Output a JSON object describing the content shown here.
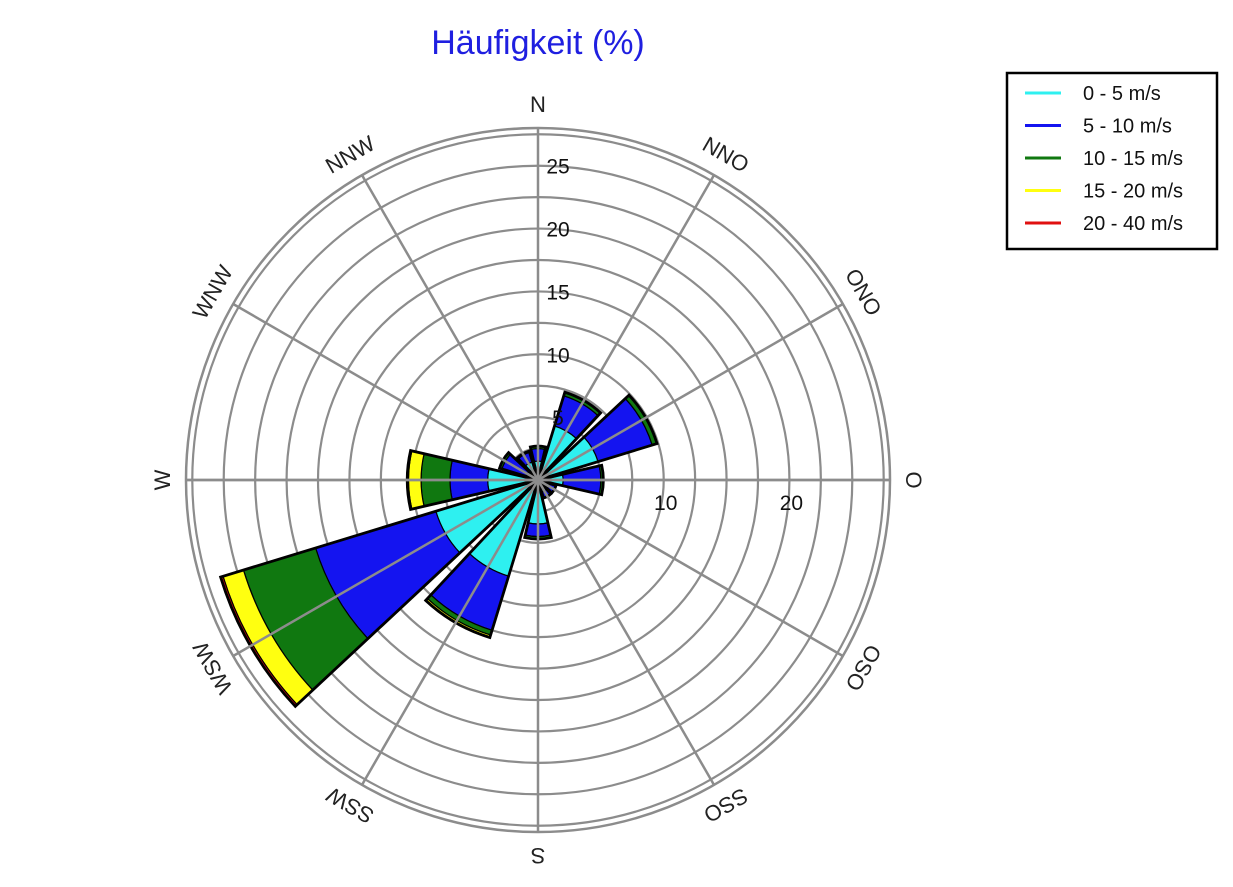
{
  "chart_data": {
    "type": "windrose",
    "title": "Häufigkeit (%)",
    "directions": [
      "N",
      "NNO",
      "ONO",
      "O",
      "OSO",
      "SSO",
      "S",
      "SSW",
      "WSW",
      "W",
      "WNW",
      "NNW"
    ],
    "radial_max": 28,
    "radial_ticks": [
      5,
      10,
      15,
      20,
      25
    ],
    "radial_ring_step": 2.5,
    "horizontal_ticks": [
      10,
      20
    ],
    "grid": true,
    "legend_position": "top-right",
    "series": [
      {
        "name": "0 - 5 m/s",
        "color": "#2ef0f0",
        "values": [
          1.5,
          4.5,
          5.0,
          2.0,
          1.0,
          1.0,
          3.5,
          8.0,
          8.5,
          4.0,
          1.0,
          1.5
        ]
      },
      {
        "name": "5 - 10 m/s",
        "color": "#1414f0",
        "values": [
          1.0,
          2.5,
          4.5,
          3.0,
          0.5,
          0.5,
          1.0,
          4.5,
          10.0,
          3.0,
          2.0,
          0.8
        ]
      },
      {
        "name": "10 - 15 m/s",
        "color": "#107810",
        "values": [
          0.2,
          0.3,
          0.4,
          0.2,
          0.0,
          0.0,
          0.2,
          0.4,
          6.0,
          2.3,
          0.2,
          0.1
        ]
      },
      {
        "name": "15 - 20 m/s",
        "color": "#ffff10",
        "values": [
          0.0,
          0.0,
          0.0,
          0.0,
          0.0,
          0.0,
          0.0,
          0.2,
          1.7,
          1.0,
          0.0,
          0.0
        ]
      },
      {
        "name": "20 - 40 m/s",
        "color": "#e01010",
        "values": [
          0.0,
          0.0,
          0.0,
          0.0,
          0.0,
          0.0,
          0.0,
          0.0,
          0.2,
          0.1,
          0.0,
          0.0
        ]
      }
    ]
  }
}
